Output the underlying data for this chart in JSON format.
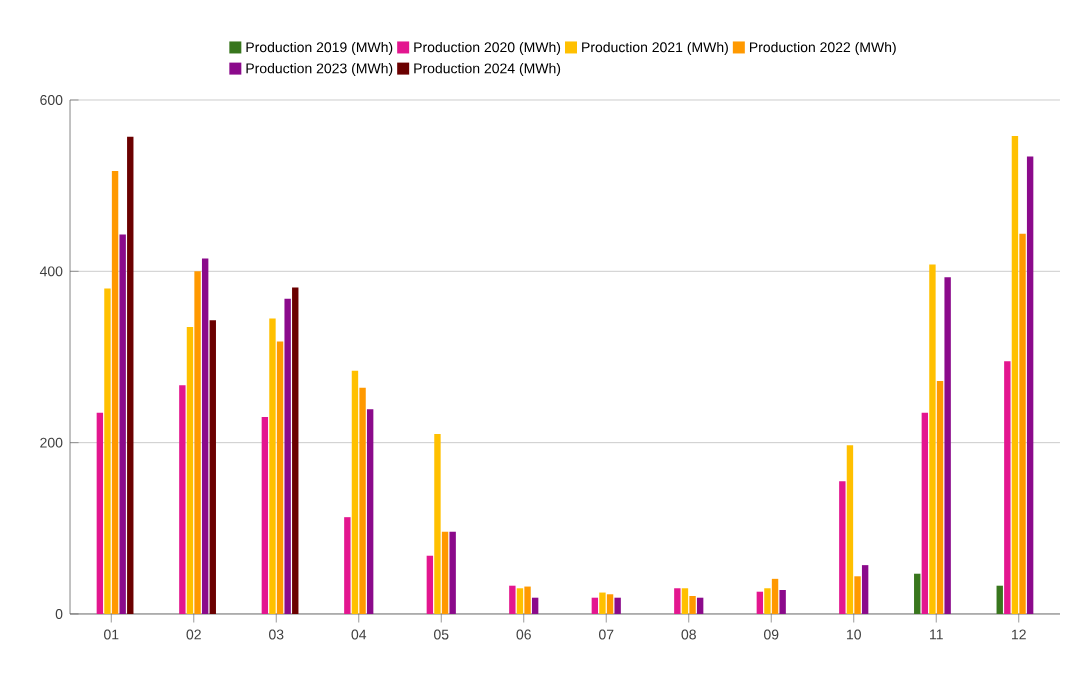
{
  "chart_data": {
    "type": "bar",
    "categories": [
      "01",
      "02",
      "03",
      "04",
      "05",
      "06",
      "07",
      "08",
      "09",
      "10",
      "11",
      "12"
    ],
    "series": [
      {
        "name": "Production 2019 (MWh)",
        "color": "#38761d",
        "values": [
          null,
          null,
          null,
          null,
          null,
          null,
          null,
          null,
          null,
          null,
          47,
          33
        ]
      },
      {
        "name": "Production 2020 (MWh)",
        "color": "#e3168f",
        "values": [
          235,
          267,
          230,
          113,
          68,
          33,
          19,
          30,
          26,
          155,
          235,
          295
        ]
      },
      {
        "name": "Production 2021 (MWh)",
        "color": "#ffc000",
        "values": [
          380,
          335,
          345,
          284,
          210,
          30,
          25,
          30,
          30,
          197,
          408,
          558
        ]
      },
      {
        "name": "Production 2022 (MWh)",
        "color": "#ff9900",
        "values": [
          517,
          400,
          318,
          264,
          96,
          32,
          23,
          21,
          41,
          44,
          272,
          444
        ]
      },
      {
        "name": "Production 2023 (MWh)",
        "color": "#8b0a8b",
        "values": [
          443,
          415,
          368,
          239,
          96,
          19,
          19,
          19,
          28,
          57,
          393,
          534
        ]
      },
      {
        "name": "Production 2024 (MWh)",
        "color": "#6b0000",
        "values": [
          557,
          343,
          381,
          null,
          null,
          null,
          null,
          null,
          null,
          null,
          null,
          null
        ]
      }
    ],
    "ylim": [
      0,
      600
    ],
    "yticks": [
      0,
      200,
      400,
      600
    ],
    "grid": "y",
    "legend": "top"
  }
}
